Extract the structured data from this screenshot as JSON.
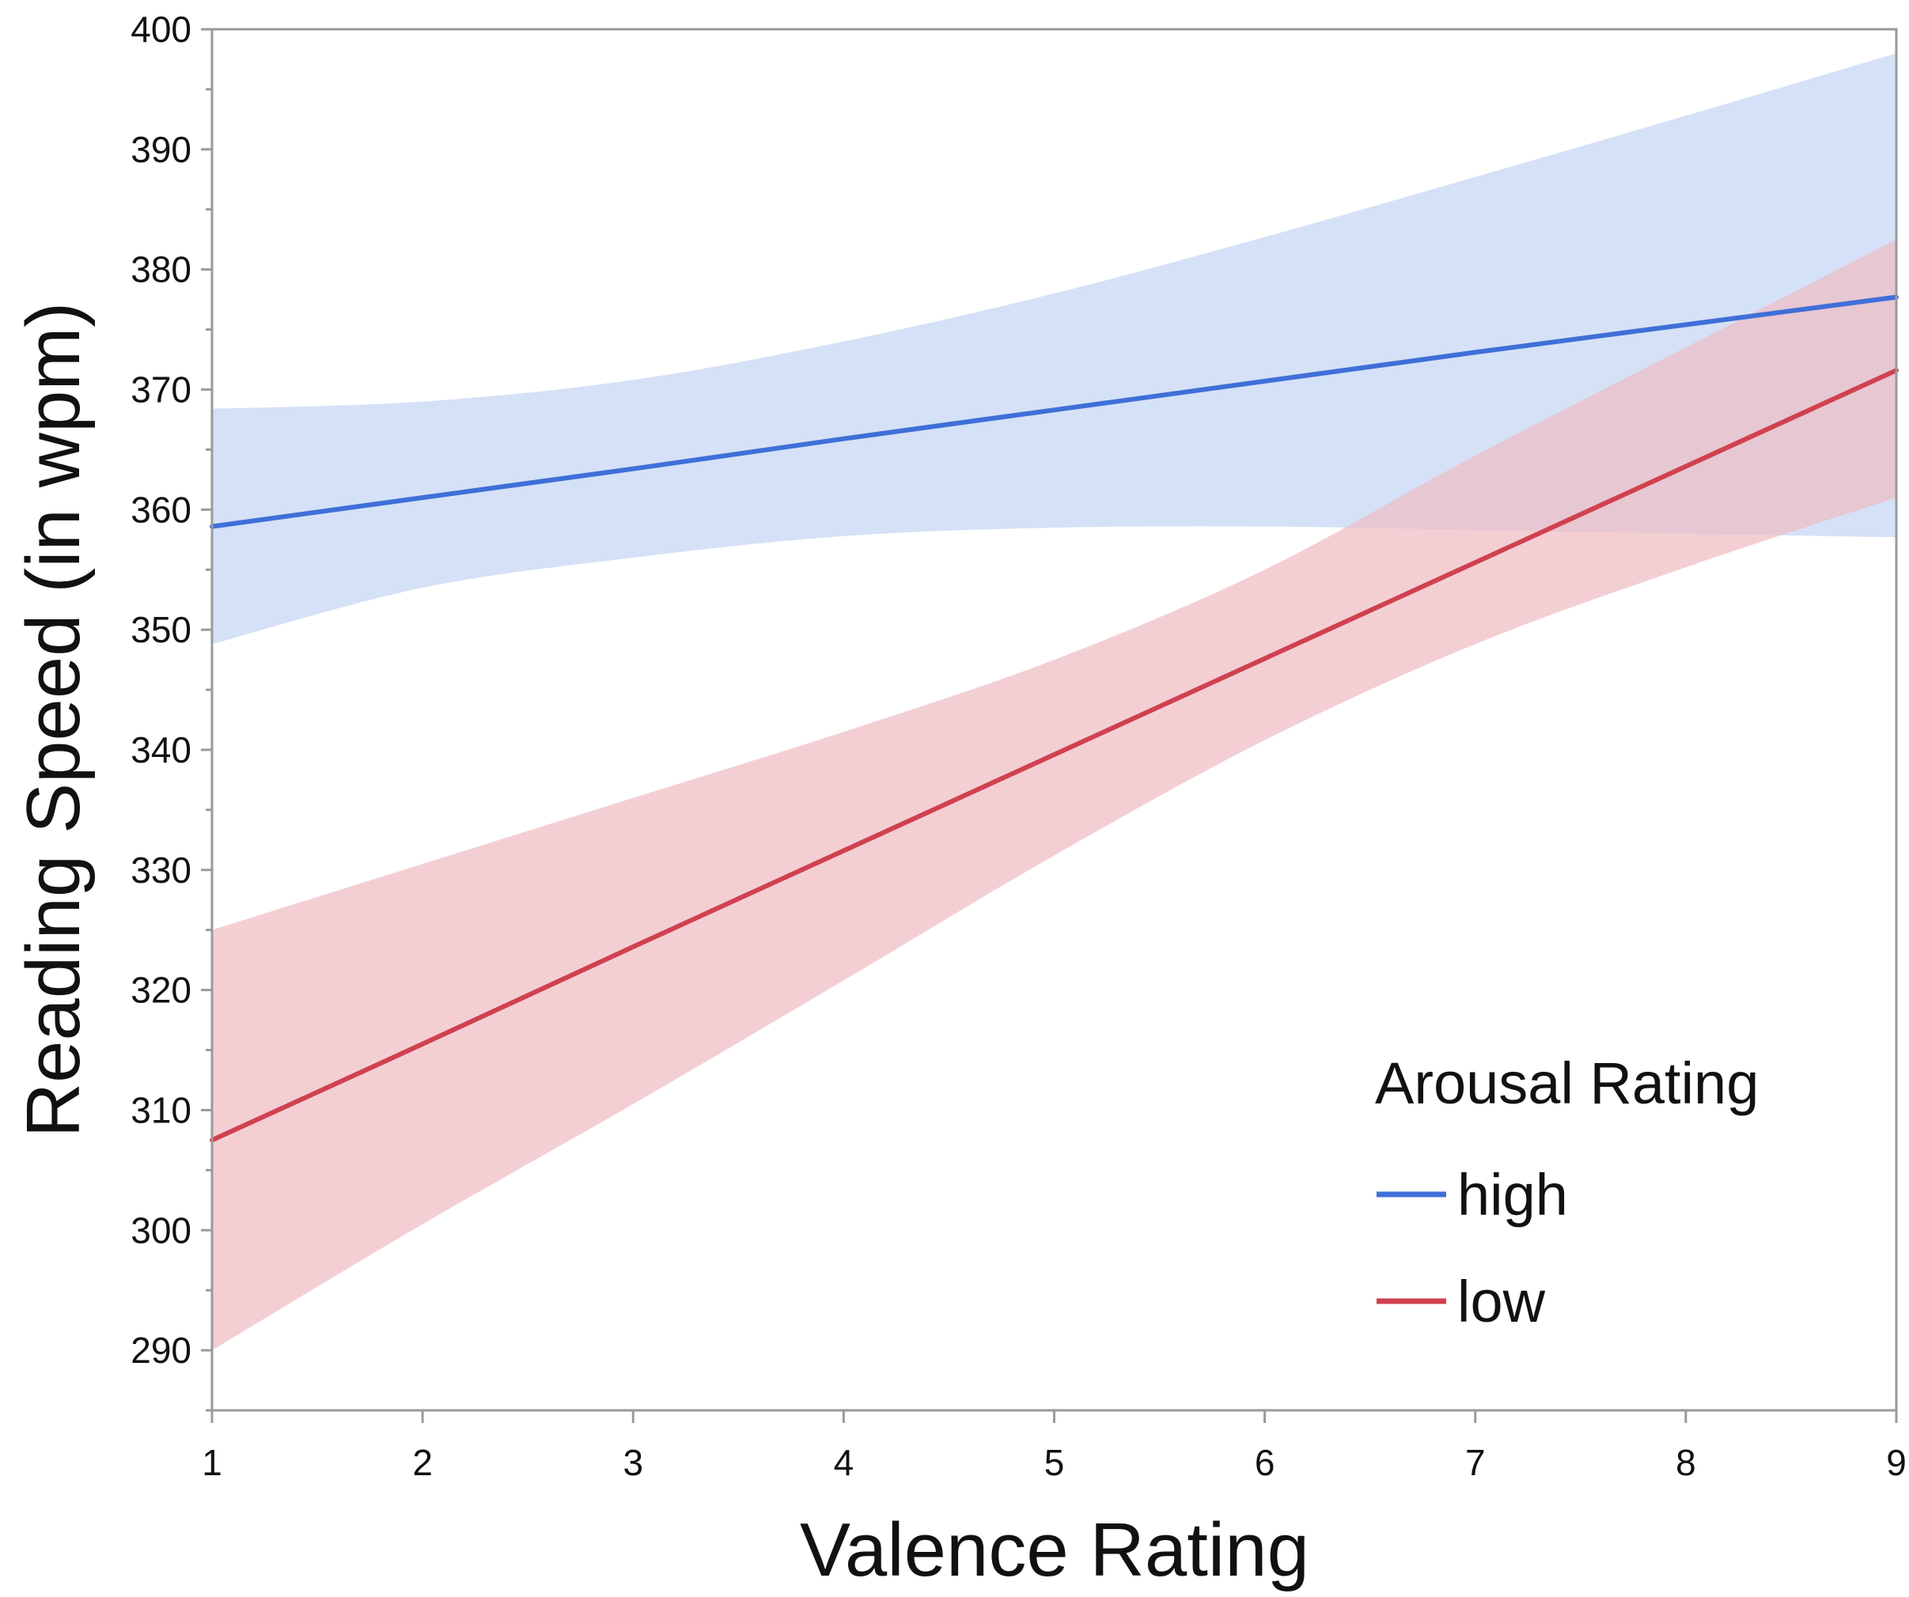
{
  "chart_data": {
    "type": "line",
    "title": "",
    "xlabel": "Valence Rating",
    "ylabel": "Reading Speed (in wpm)",
    "xlim": [
      1,
      9
    ],
    "ylim": [
      285,
      400
    ],
    "xticks": [
      1,
      2,
      3,
      4,
      5,
      6,
      7,
      8,
      9
    ],
    "yticks": [
      290,
      300,
      310,
      320,
      330,
      340,
      350,
      360,
      370,
      380,
      390,
      400
    ],
    "grid": false,
    "legend": {
      "title": "Arousal Rating",
      "position": "bottom-right",
      "entries": [
        "high",
        "low"
      ]
    },
    "series": [
      {
        "name": "high",
        "color": "#3f6fd8",
        "band_color": "#c5d5f2",
        "x": [
          1,
          2,
          3,
          4,
          5,
          6,
          7,
          8,
          9
        ],
        "y": [
          358.6,
          361.0,
          363.4,
          365.9,
          368.3,
          370.7,
          373.1,
          375.4,
          377.7
        ],
        "lower": [
          348.8,
          353.5,
          356.0,
          357.8,
          358.5,
          358.6,
          358.3,
          358.0,
          357.7
        ],
        "upper": [
          368.4,
          369.0,
          370.8,
          374.0,
          378.0,
          382.7,
          387.7,
          392.8,
          398.0
        ]
      },
      {
        "name": "low",
        "color": "#d0414f",
        "band_color": "#eebcc4",
        "x": [
          1,
          2,
          3,
          4,
          5,
          6,
          7,
          8,
          9
        ],
        "y": [
          307.5,
          315.5,
          323.6,
          331.6,
          339.6,
          347.6,
          355.6,
          363.6,
          371.6
        ],
        "lower": [
          290.0,
          300.5,
          310.5,
          320.8,
          331.2,
          340.8,
          348.8,
          355.2,
          361.0
        ],
        "upper": [
          325.0,
          330.5,
          336.0,
          341.5,
          347.5,
          355.0,
          364.5,
          373.5,
          382.5
        ]
      }
    ]
  }
}
